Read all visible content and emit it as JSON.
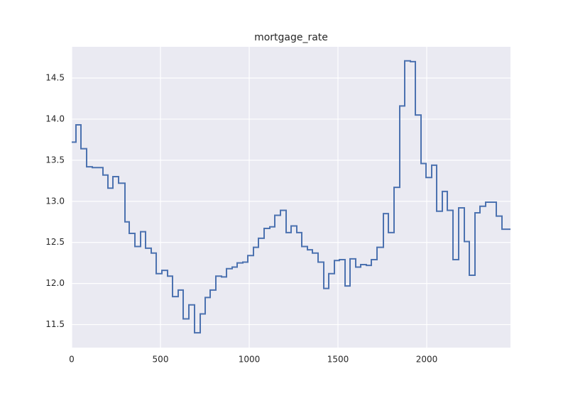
{
  "chart_data": {
    "type": "line",
    "title": "mortgage_rate",
    "color": "#4c72b0",
    "drawstyle": "steps-post",
    "grid": true,
    "x": [
      0,
      24,
      52,
      84,
      116,
      176,
      204,
      232,
      264,
      300,
      324,
      356,
      388,
      416,
      448,
      476,
      508,
      540,
      568,
      600,
      628,
      660,
      692,
      724,
      752,
      780,
      812,
      844,
      872,
      904,
      932,
      964,
      992,
      1024,
      1052,
      1084,
      1116,
      1144,
      1176,
      1208,
      1236,
      1268,
      1296,
      1328,
      1356,
      1388,
      1420,
      1448,
      1480,
      1508,
      1540,
      1568,
      1600,
      1628,
      1660,
      1688,
      1720,
      1756,
      1784,
      1816,
      1848,
      1876,
      1908,
      1936,
      1968,
      1996,
      2028,
      2056,
      2088,
      2116,
      2148,
      2180,
      2212,
      2240,
      2272,
      2300,
      2332,
      2392,
      2424,
      2472
    ],
    "values": [
      13.72,
      13.93,
      13.64,
      13.42,
      13.41,
      13.32,
      13.16,
      13.3,
      13.22,
      12.75,
      12.61,
      12.45,
      12.63,
      12.43,
      12.37,
      12.12,
      12.16,
      12.09,
      11.84,
      11.92,
      11.57,
      11.74,
      11.4,
      11.63,
      11.83,
      11.92,
      12.09,
      12.08,
      12.18,
      12.2,
      12.25,
      12.26,
      12.34,
      12.44,
      12.55,
      12.67,
      12.69,
      12.83,
      12.89,
      12.62,
      12.7,
      12.62,
      12.45,
      12.41,
      12.37,
      12.26,
      11.94,
      12.12,
      12.28,
      12.29,
      11.97,
      12.3,
      12.2,
      12.23,
      12.22,
      12.29,
      12.44,
      12.85,
      12.62,
      13.17,
      14.16,
      14.71,
      14.7,
      14.05,
      13.46,
      13.29,
      13.44,
      12.88,
      13.12,
      12.89,
      12.29,
      12.92,
      12.51,
      12.1,
      12.86,
      12.94,
      12.99,
      12.82,
      12.66,
      12.66
    ],
    "xlim": [
      0,
      2472
    ],
    "ylim": [
      11.22,
      14.88
    ],
    "xticks": [
      0,
      500,
      1000,
      1500,
      2000
    ],
    "yticks": [
      11.5,
      {
        "value": 12,
        "label": "12.0"
      },
      12.5,
      {
        "value": 13,
        "label": "13.0"
      },
      13.5,
      {
        "value": 14,
        "label": "14.0"
      },
      14.5
    ]
  }
}
